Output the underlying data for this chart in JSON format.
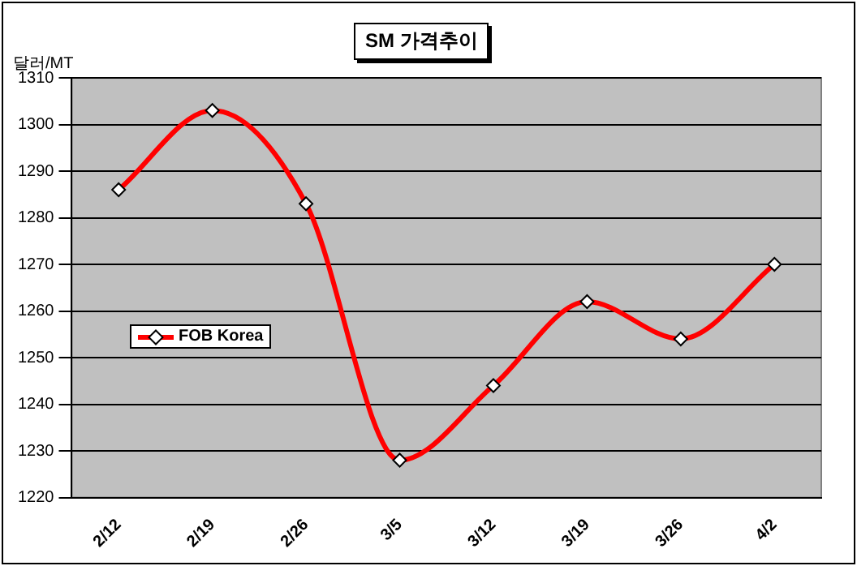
{
  "chart_data": {
    "type": "line",
    "title": "SM 가격추이",
    "ylabel": "달러/MT",
    "categories": [
      "2/12",
      "2/19",
      "2/26",
      "3/5",
      "3/12",
      "3/19",
      "3/26",
      "4/2"
    ],
    "series": [
      {
        "name": "FOB Korea",
        "color": "#ff0000",
        "values": [
          1286,
          1303,
          1283,
          1228,
          1244,
          1262,
          1254,
          1270
        ]
      }
    ],
    "ylim": [
      1220,
      1310
    ],
    "yticks": [
      1220,
      1230,
      1240,
      1250,
      1260,
      1270,
      1280,
      1290,
      1300,
      1310
    ],
    "grid": "y",
    "legend": "left",
    "marker": "diamond",
    "line_style": "solid"
  }
}
